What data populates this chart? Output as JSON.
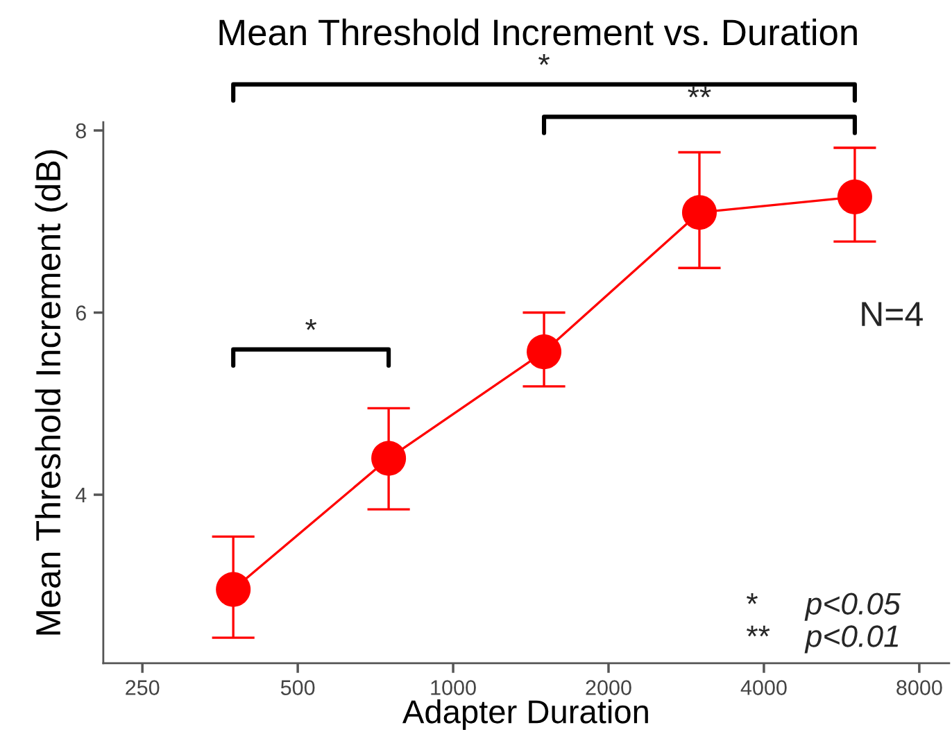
{
  "chart_data": {
    "type": "line",
    "title": "Mean Threshold Increment vs. Duration",
    "xlabel": "Adapter Duration",
    "ylabel": "Mean Threshold Increment (dB)",
    "x": [
      375,
      750,
      1500,
      3000,
      6000
    ],
    "series": [
      {
        "color": "#ff0000",
        "values": [
          2.96,
          4.4,
          5.57,
          7.1,
          7.27
        ],
        "errors": [
          [
            2.43,
            3.54
          ],
          [
            3.84,
            4.95
          ],
          [
            5.19,
            6.0
          ],
          [
            6.49,
            7.76
          ],
          [
            6.78,
            7.81
          ]
        ]
      }
    ],
    "log": "x",
    "xlim": [
      210,
      9140
    ],
    "xticks": [
      250,
      500,
      1000,
      2000,
      4000,
      8000
    ],
    "ylim": [
      2.15,
      8.09
    ],
    "yticks": [
      4,
      6,
      8
    ],
    "marker": "circle",
    "line_style": "solid",
    "grid": false,
    "legend": false,
    "annotations": [
      "*",
      "**",
      "*",
      "N=4",
      "*",
      "p<0.05",
      "**",
      "p<0.01"
    ]
  }
}
